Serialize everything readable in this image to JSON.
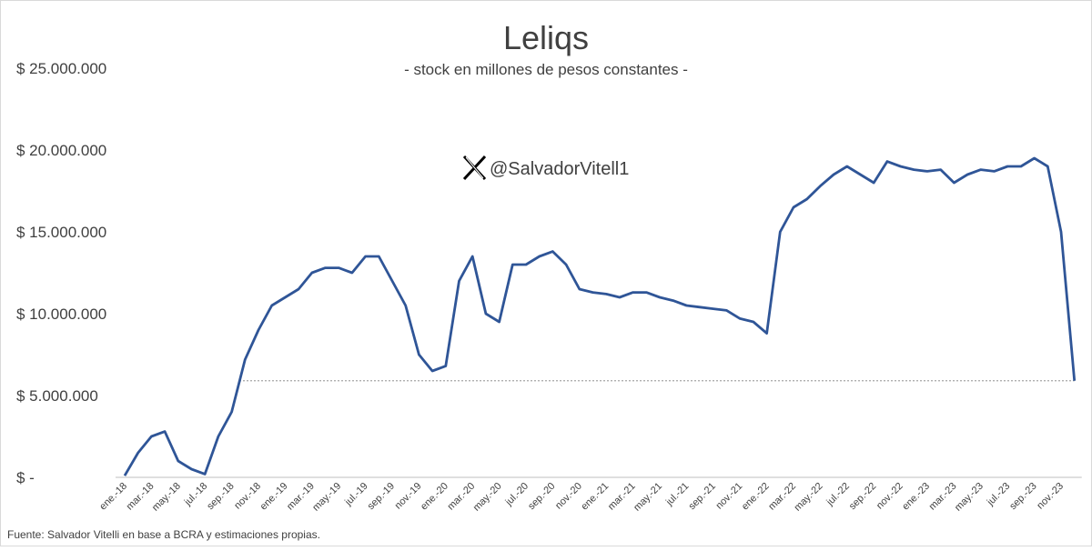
{
  "chart_data": {
    "type": "line",
    "title": "Leliqs",
    "subtitle": "- stock en millones de pesos constantes -",
    "annotation": "@SalvadorVitell1",
    "source": "Fuente: Salvador Vitelli en base a BCRA y estimaciones propias.",
    "categories": [
      "ene.-18",
      null,
      "mar.-18",
      null,
      "may.-18",
      null,
      "jul.-18",
      null,
      "sep.-18",
      null,
      "nov.-18",
      null,
      "ene.-19",
      null,
      "mar.-19",
      null,
      "may.-19",
      null,
      "jul.-19",
      null,
      "sep.-19",
      null,
      "nov.-19",
      null,
      "ene.-20",
      null,
      "mar.-20",
      null,
      "may.-20",
      null,
      "jul.-20",
      null,
      "sep.-20",
      null,
      "nov.-20",
      null,
      "ene.-21",
      null,
      "mar.-21",
      null,
      "may.-21",
      null,
      "jul.-21",
      null,
      "sep.-21",
      null,
      "nov.-21",
      null,
      "ene.-22",
      null,
      "mar.-22",
      null,
      "may.-22",
      null,
      "jul.-22",
      null,
      "sep.-22",
      null,
      "nov.-22",
      null,
      "ene.-23",
      null,
      "mar.-23",
      null,
      "may.-23",
      null,
      "jul.-23",
      null,
      "sep.-23",
      null,
      "nov.-23",
      null
    ],
    "series": [
      {
        "name": "Leliqs",
        "color": "#2f5597",
        "values": [
          100000,
          1500000,
          2500000,
          2800000,
          1000000,
          500000,
          200000,
          2500000,
          4000000,
          7200000,
          9000000,
          10500000,
          11000000,
          11500000,
          12500000,
          12800000,
          12800000,
          12500000,
          13500000,
          13500000,
          12000000,
          10500000,
          7500000,
          6500000,
          6800000,
          12000000,
          13500000,
          10000000,
          9500000,
          13000000,
          13000000,
          13500000,
          13800000,
          13000000,
          11500000,
          11300000,
          11200000,
          11000000,
          11300000,
          11300000,
          11000000,
          10800000,
          10500000,
          10400000,
          10300000,
          10200000,
          9700000,
          9500000,
          8800000,
          15000000,
          16500000,
          17000000,
          17800000,
          18500000,
          19000000,
          18500000,
          18000000,
          19300000,
          19000000,
          18800000,
          18700000,
          18800000,
          18000000,
          18500000,
          18800000,
          18700000,
          19000000,
          19000000,
          19500000,
          19000000,
          15000000,
          5900000
        ]
      }
    ],
    "reference_line": 5900000,
    "ylim": [
      0,
      25000000
    ],
    "yticks": [
      {
        "value": 0,
        "label": "$ -"
      },
      {
        "value": 5000000,
        "label": "$ 5.000.000"
      },
      {
        "value": 10000000,
        "label": "$ 10.000.000"
      },
      {
        "value": 15000000,
        "label": "$ 15.000.000"
      },
      {
        "value": 20000000,
        "label": "$ 20.000.000"
      },
      {
        "value": 25000000,
        "label": "$ 25.000.000"
      }
    ],
    "grid": false
  }
}
